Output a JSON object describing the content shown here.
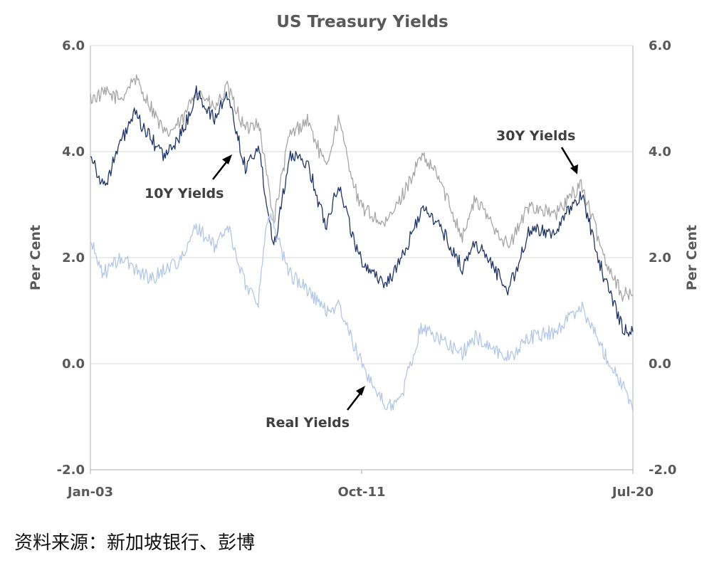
{
  "chart_data": {
    "type": "line",
    "title": "US Treasury Yields",
    "ylabel_left": "Per Cent",
    "ylabel_right": "Per Cent",
    "ylim": [
      -2.0,
      6.0
    ],
    "yticks": [
      "6.0",
      "4.0",
      "2.0",
      "0.0",
      "-2.0"
    ],
    "xtick_labels": [
      "Jan-03",
      "Oct-11",
      "Jul-20"
    ],
    "xlim": [
      "2003-01",
      "2020-07"
    ],
    "grid": true,
    "annotations": [
      "10Y Yields",
      "30Y Yields",
      "Real Yields"
    ],
    "series": [
      {
        "name": "30Y Yields",
        "color": "#a6a6a6",
        "x": [
          "2003-01",
          "2003-07",
          "2004-01",
          "2004-06",
          "2005-01",
          "2005-06",
          "2006-01",
          "2006-06",
          "2007-01",
          "2007-06",
          "2008-01",
          "2008-06",
          "2008-12",
          "2009-06",
          "2010-01",
          "2010-08",
          "2011-01",
          "2011-09",
          "2012-07",
          "2013-01",
          "2013-09",
          "2014-03",
          "2015-01",
          "2015-06",
          "2016-07",
          "2017-03",
          "2018-01",
          "2018-11",
          "2019-08",
          "2020-03",
          "2020-07"
        ],
        "values": [
          5.0,
          5.1,
          5.0,
          5.4,
          4.8,
          4.3,
          4.6,
          5.2,
          4.8,
          5.2,
          4.4,
          4.6,
          2.7,
          4.3,
          4.6,
          3.7,
          4.6,
          3.0,
          2.6,
          3.1,
          3.9,
          3.6,
          2.4,
          3.1,
          2.2,
          3.0,
          2.8,
          3.4,
          2.0,
          1.3,
          1.3
        ]
      },
      {
        "name": "10Y Yields",
        "color": "#1f3467",
        "x": [
          "2003-01",
          "2003-06",
          "2004-01",
          "2004-06",
          "2005-01",
          "2005-06",
          "2006-01",
          "2006-06",
          "2007-01",
          "2007-06",
          "2008-01",
          "2008-06",
          "2008-12",
          "2009-06",
          "2010-01",
          "2010-08",
          "2011-01",
          "2011-09",
          "2012-07",
          "2013-01",
          "2013-09",
          "2014-03",
          "2015-01",
          "2015-06",
          "2016-07",
          "2017-03",
          "2018-01",
          "2018-11",
          "2019-08",
          "2020-03",
          "2020-07"
        ],
        "values": [
          4.0,
          3.3,
          4.2,
          4.7,
          4.2,
          3.9,
          4.4,
          5.1,
          4.6,
          5.1,
          3.7,
          4.1,
          2.2,
          3.9,
          3.8,
          2.6,
          3.4,
          2.0,
          1.5,
          1.9,
          2.9,
          2.7,
          1.8,
          2.3,
          1.4,
          2.5,
          2.5,
          3.2,
          1.6,
          0.7,
          0.6
        ]
      },
      {
        "name": "Real Yields",
        "color": "#b4c7e7",
        "x": [
          "2003-01",
          "2003-06",
          "2004-01",
          "2004-06",
          "2005-01",
          "2005-06",
          "2006-01",
          "2006-06",
          "2007-01",
          "2007-06",
          "2008-01",
          "2008-06",
          "2008-10",
          "2009-06",
          "2010-01",
          "2010-08",
          "2011-01",
          "2011-09",
          "2012-07",
          "2013-01",
          "2013-09",
          "2014-03",
          "2015-01",
          "2015-06",
          "2016-07",
          "2017-03",
          "2018-01",
          "2018-11",
          "2019-08",
          "2020-03",
          "2020-07"
        ],
        "values": [
          2.3,
          1.7,
          2.0,
          1.8,
          1.6,
          1.8,
          2.0,
          2.6,
          2.2,
          2.6,
          1.5,
          1.2,
          2.9,
          1.7,
          1.4,
          1.0,
          1.1,
          0.1,
          -0.8,
          -0.7,
          0.7,
          0.5,
          0.2,
          0.5,
          0.1,
          0.5,
          0.6,
          1.1,
          0.2,
          -0.4,
          -0.9
        ]
      }
    ]
  },
  "source_note": "资料来源：新加坡银行、彭博"
}
